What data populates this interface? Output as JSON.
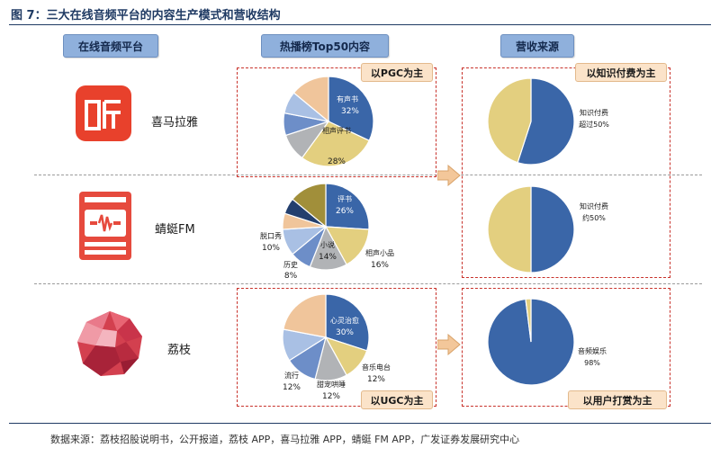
{
  "figure": {
    "title": "图 7：三大在线音频平台的内容生产模式和营收结构",
    "source": "数据来源：荔枝招股说明书，公开报道，荔枝 APP，喜马拉雅 APP，蜻蜓 FM APP，广发证券发展研究中心"
  },
  "headers": {
    "platforms": "在线音频平台",
    "content": "热播榜Top50内容",
    "revenue": "营收来源"
  },
  "tags": {
    "pgc": "以PGC为主",
    "ugc": "以UGC为主",
    "knowledge_paid": "以知识付费为主",
    "user_tips": "以用户打赏为主"
  },
  "colors": {
    "blue": "#3a66a8",
    "gold": "#e3cf7f",
    "gray": "#b1b3b6",
    "light_blue": "#a9c0e4",
    "mid_blue": "#6d8ec8",
    "peach": "#f0c59b",
    "dark_navy": "#233f6e",
    "olive": "#a18f3a",
    "red_logo": "#e53a2a"
  },
  "platforms": [
    {
      "name": "喜马拉雅",
      "logo": "ximalaya-logo",
      "content_pie": {
        "slices": [
          {
            "label": "有声书",
            "value": 32,
            "text": "32%",
            "color": "#3a66a8"
          },
          {
            "label": "相声评书",
            "value": 28,
            "text": "28%",
            "color": "#e3cf7f"
          },
          {
            "label": "",
            "value": 10,
            "text": "",
            "color": "#b1b3b6"
          },
          {
            "label": "",
            "value": 8,
            "text": "",
            "color": "#6d8ec8"
          },
          {
            "label": "",
            "value": 8,
            "text": "",
            "color": "#a9c0e4"
          },
          {
            "label": "",
            "value": 14,
            "text": "",
            "color": "#f0c59b"
          }
        ]
      },
      "revenue_pie": {
        "slices": [
          {
            "label": "知识付费超过50%",
            "value": 55,
            "color": "#3a66a8"
          },
          {
            "label": "",
            "value": 45,
            "color": "#e3cf7f"
          }
        ],
        "label_lines": [
          "知识付费",
          "超过50%"
        ]
      }
    },
    {
      "name": "蜻蜓FM",
      "logo": "qingting-logo",
      "content_pie": {
        "slices": [
          {
            "label": "评书",
            "value": 26,
            "text": "26%",
            "color": "#3a66a8"
          },
          {
            "label": "相声小品",
            "value": 16,
            "text": "16%",
            "color": "#e3cf7f"
          },
          {
            "label": "小说",
            "value": 14,
            "text": "14%",
            "color": "#b1b3b6"
          },
          {
            "label": "历史",
            "value": 8,
            "text": "8%",
            "color": "#6d8ec8"
          },
          {
            "label": "脱口秀",
            "value": 10,
            "text": "10%",
            "color": "#a9c0e4"
          },
          {
            "label": "",
            "value": 6,
            "text": "",
            "color": "#f0c59b"
          },
          {
            "label": "",
            "value": 6,
            "text": "",
            "color": "#233f6e"
          },
          {
            "label": "",
            "value": 14,
            "text": "",
            "color": "#a18f3a"
          }
        ]
      },
      "revenue_pie": {
        "slices": [
          {
            "label": "知识付费约50%",
            "value": 50,
            "color": "#3a66a8"
          },
          {
            "label": "",
            "value": 50,
            "color": "#e3cf7f"
          }
        ],
        "label_lines": [
          "知识付费",
          "约50%"
        ]
      }
    },
    {
      "name": "荔枝",
      "logo": "lizhi-logo",
      "content_pie": {
        "slices": [
          {
            "label": "心灵治愈",
            "value": 30,
            "text": "30%",
            "color": "#3a66a8"
          },
          {
            "label": "音乐电台",
            "value": 12,
            "text": "12%",
            "color": "#e3cf7f"
          },
          {
            "label": "甜宠哄睡",
            "value": 12,
            "text": "12%",
            "color": "#b1b3b6"
          },
          {
            "label": "流行",
            "value": 12,
            "text": "12%",
            "color": "#6d8ec8"
          },
          {
            "label": "",
            "value": 12,
            "text": "",
            "color": "#a9c0e4"
          },
          {
            "label": "",
            "value": 22,
            "text": "",
            "color": "#f0c59b"
          }
        ]
      },
      "revenue_pie": {
        "slices": [
          {
            "label": "音频娱乐98%",
            "value": 98,
            "color": "#3a66a8"
          },
          {
            "label": "",
            "value": 2,
            "color": "#e3cf7f"
          }
        ],
        "label_lines": [
          "音频娱乐",
          "98%"
        ]
      }
    }
  ]
}
